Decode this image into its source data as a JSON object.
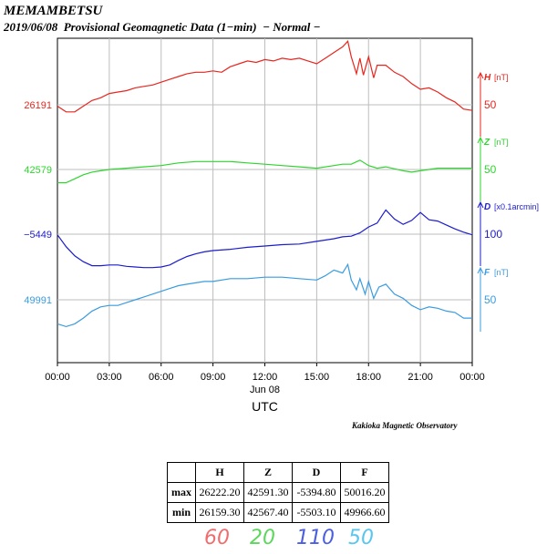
{
  "header": {
    "title": "MEMAMBETSU",
    "subtitle": "2019/06/08  Provisional Geomagnetic Data (1−min)  − Normal −"
  },
  "chart_data": {
    "type": "line",
    "x_ticks": [
      "00:00",
      "03:00",
      "06:00",
      "09:00",
      "12:00",
      "15:00",
      "18:00",
      "21:00",
      "00:00"
    ],
    "x_date_label": "Jun 08",
    "xlabel": "UTC",
    "x_range_hours": [
      0,
      24
    ],
    "grid": true,
    "series": [
      {
        "name": "H",
        "unit": "[nT]",
        "color": "#e8261e",
        "left_label": "26191",
        "scale_value": "50",
        "points": [
          [
            0,
            26190
          ],
          [
            0.5,
            26186
          ],
          [
            1,
            26186
          ],
          [
            1.5,
            26190
          ],
          [
            2,
            26194
          ],
          [
            2.5,
            26196
          ],
          [
            3,
            26199
          ],
          [
            3.5,
            26200
          ],
          [
            4,
            26201
          ],
          [
            4.5,
            26203
          ],
          [
            5,
            26204
          ],
          [
            5.5,
            26205
          ],
          [
            6,
            26207
          ],
          [
            6.5,
            26209
          ],
          [
            7,
            26211
          ],
          [
            7.5,
            26213
          ],
          [
            8,
            26214
          ],
          [
            8.5,
            26214
          ],
          [
            9,
            26215
          ],
          [
            9.5,
            26214
          ],
          [
            10,
            26218
          ],
          [
            10.5,
            26220
          ],
          [
            11,
            26222
          ],
          [
            11.5,
            26221
          ],
          [
            12,
            26223
          ],
          [
            12.5,
            26222
          ],
          [
            13,
            26224
          ],
          [
            13.5,
            26223
          ],
          [
            14,
            26224
          ],
          [
            14.5,
            26222
          ],
          [
            15,
            26220
          ],
          [
            15.5,
            26224
          ],
          [
            16,
            26228
          ],
          [
            16.5,
            26232
          ],
          [
            16.8,
            26236
          ],
          [
            17,
            26225
          ],
          [
            17.3,
            26213
          ],
          [
            17.5,
            26224
          ],
          [
            17.7,
            26212
          ],
          [
            18,
            26225
          ],
          [
            18.3,
            26210
          ],
          [
            18.5,
            26219
          ],
          [
            19,
            26219
          ],
          [
            19.5,
            26214
          ],
          [
            20,
            26211
          ],
          [
            20.5,
            26206
          ],
          [
            21,
            26202
          ],
          [
            21.5,
            26203
          ],
          [
            22,
            26200
          ],
          [
            22.5,
            26196
          ],
          [
            23,
            26193
          ],
          [
            23.5,
            26188
          ],
          [
            24,
            26187
          ]
        ]
      },
      {
        "name": "Z",
        "unit": "[nT]",
        "color": "#2ed52e",
        "left_label": "42579",
        "scale_value": "50",
        "points": [
          [
            0,
            42569
          ],
          [
            0.5,
            42569
          ],
          [
            1,
            42572
          ],
          [
            1.5,
            42575
          ],
          [
            2,
            42577
          ],
          [
            2.5,
            42578
          ],
          [
            3,
            42579
          ],
          [
            4,
            42580
          ],
          [
            5,
            42581
          ],
          [
            6,
            42582
          ],
          [
            7,
            42584
          ],
          [
            8,
            42585
          ],
          [
            9,
            42585
          ],
          [
            10,
            42585
          ],
          [
            11,
            42584
          ],
          [
            12,
            42583
          ],
          [
            13,
            42582
          ],
          [
            14,
            42581
          ],
          [
            15,
            42580
          ],
          [
            16,
            42582
          ],
          [
            16.5,
            42583
          ],
          [
            17,
            42583
          ],
          [
            17.5,
            42586
          ],
          [
            18,
            42582
          ],
          [
            18.5,
            42580
          ],
          [
            19,
            42581
          ],
          [
            20,
            42578
          ],
          [
            20.5,
            42577
          ],
          [
            21,
            42578
          ],
          [
            21.5,
            42579
          ],
          [
            22,
            42580
          ],
          [
            23,
            42580
          ],
          [
            24,
            42580
          ]
        ]
      },
      {
        "name": "D",
        "unit": "[x0.1arcmin]",
        "color": "#1c1ccd",
        "left_label": "−5449",
        "scale_value": "100",
        "points": [
          [
            0,
            -5450
          ],
          [
            0.5,
            -5468
          ],
          [
            1,
            -5482
          ],
          [
            1.5,
            -5491
          ],
          [
            2,
            -5497
          ],
          [
            2.5,
            -5497
          ],
          [
            3,
            -5496
          ],
          [
            3.5,
            -5496
          ],
          [
            4,
            -5498
          ],
          [
            4.5,
            -5499
          ],
          [
            5,
            -5500
          ],
          [
            5.5,
            -5500
          ],
          [
            6,
            -5499
          ],
          [
            6.5,
            -5496
          ],
          [
            7,
            -5489
          ],
          [
            7.5,
            -5483
          ],
          [
            8,
            -5479
          ],
          [
            8.5,
            -5476
          ],
          [
            9,
            -5474
          ],
          [
            10,
            -5472
          ],
          [
            11,
            -5469
          ],
          [
            12,
            -5467
          ],
          [
            13,
            -5465
          ],
          [
            14,
            -5464
          ],
          [
            15,
            -5460
          ],
          [
            16,
            -5456
          ],
          [
            16.5,
            -5453
          ],
          [
            17,
            -5452
          ],
          [
            17.5,
            -5447
          ],
          [
            18,
            -5438
          ],
          [
            18.5,
            -5432
          ],
          [
            18.8,
            -5420
          ],
          [
            19,
            -5412
          ],
          [
            19.5,
            -5426
          ],
          [
            20,
            -5434
          ],
          [
            20.5,
            -5428
          ],
          [
            21,
            -5416
          ],
          [
            21.5,
            -5427
          ],
          [
            22,
            -5429
          ],
          [
            22.5,
            -5435
          ],
          [
            23,
            -5441
          ],
          [
            23.5,
            -5446
          ],
          [
            24,
            -5450
          ]
        ]
      },
      {
        "name": "F",
        "unit": "[nT]",
        "color": "#3a9ce0",
        "left_label": "49991",
        "scale_value": "50",
        "points": [
          [
            0,
            49974
          ],
          [
            0.5,
            49972
          ],
          [
            1,
            49974
          ],
          [
            1.5,
            49978
          ],
          [
            2,
            49983
          ],
          [
            2.5,
            49986
          ],
          [
            3,
            49987
          ],
          [
            3.5,
            49987
          ],
          [
            4,
            49989
          ],
          [
            4.5,
            49991
          ],
          [
            5,
            49993
          ],
          [
            5.5,
            49995
          ],
          [
            6,
            49997
          ],
          [
            6.5,
            49999
          ],
          [
            7,
            50001
          ],
          [
            7.5,
            50002
          ],
          [
            8,
            50003
          ],
          [
            8.5,
            50004
          ],
          [
            9,
            50004
          ],
          [
            10,
            50006
          ],
          [
            11,
            50006
          ],
          [
            12,
            50007
          ],
          [
            13,
            50007
          ],
          [
            14,
            50006
          ],
          [
            15,
            50005
          ],
          [
            15.5,
            50008
          ],
          [
            16,
            50012
          ],
          [
            16.5,
            50010
          ],
          [
            16.8,
            50016
          ],
          [
            17,
            50005
          ],
          [
            17.3,
            49998
          ],
          [
            17.5,
            50006
          ],
          [
            17.8,
            49995
          ],
          [
            18,
            50004
          ],
          [
            18.3,
            49992
          ],
          [
            18.6,
            50000
          ],
          [
            19,
            50002
          ],
          [
            19.5,
            49995
          ],
          [
            20,
            49992
          ],
          [
            20.5,
            49987
          ],
          [
            21,
            49984
          ],
          [
            21.5,
            49986
          ],
          [
            22,
            49985
          ],
          [
            22.5,
            49983
          ],
          [
            23,
            49982
          ],
          [
            23.5,
            49978
          ],
          [
            24,
            49978
          ]
        ]
      }
    ]
  },
  "attribution": "Kakioka Magnetic Observatory",
  "stats_table": {
    "headers": [
      "",
      "H",
      "Z",
      "D",
      "F"
    ],
    "rows": [
      [
        "max",
        "26222.20",
        "42591.30",
        "-5394.80",
        "50016.20"
      ],
      [
        "min",
        "26159.30",
        "42567.40",
        "-5503.10",
        "49966.60"
      ]
    ]
  },
  "scale_legend": [
    {
      "text": "60",
      "color": "#ee6e6e"
    },
    {
      "text": "20",
      "color": "#5bd85b"
    },
    {
      "text": "110",
      "color": "#4b5fe0"
    },
    {
      "text": "50",
      "color": "#58c6ee"
    }
  ]
}
